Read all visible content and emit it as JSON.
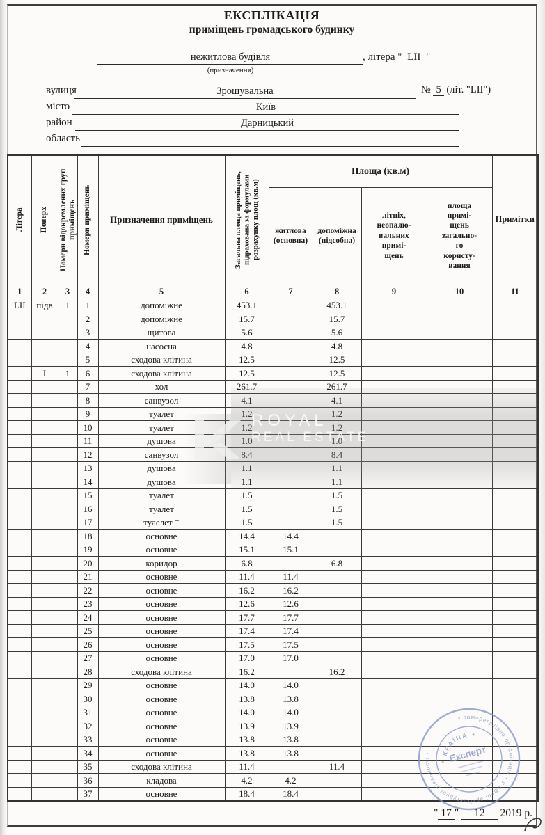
{
  "document": {
    "title": "ЕКСПЛІКАЦІЯ",
    "subtitle": "приміщень громадського будинку",
    "purpose_value": "нежитлова будівля",
    "purpose_caption": "(призначення)",
    "litera_label": ", літера",
    "open_quote": "\"",
    "litera_value": "LII",
    "close_quote": "\"",
    "fields": {
      "street_label": "вулиця",
      "street_value": "Зрошувальна",
      "number_label": "№",
      "number_value": "5",
      "number_suffix": "(літ. \"LII\")",
      "city_label": "місто",
      "city_value": "Київ",
      "district_label": "район",
      "district_value": "Дарницький",
      "region_label": "область",
      "region_value": ""
    },
    "date": {
      "open": "\"",
      "day": "17",
      "close": "\"",
      "month": "12",
      "year_text": "2019 р."
    }
  },
  "table": {
    "headers": {
      "col1": "Літера",
      "col2": "Поверх",
      "col3": "Номери відокремлених груп приміщень",
      "col4": "Номери приміщень",
      "col5": "Призначення приміщень",
      "col6": "Загальна площа приміщень, підрахована за формулами розрахунку площ (кв.м)",
      "area_group": "Площа (кв.м)",
      "col7": "житлова\n(основна)",
      "col8": "допоміжна\n(підсобна)",
      "col9": "літніх,\nнеопалю-\nвальних\nпримі-\nщень",
      "col10": "площа\nпримі-\nщень\nзагально-\nго\nкористу-\nвання",
      "col11": "Примітки"
    },
    "col_numbers": [
      "1",
      "2",
      "3",
      "4",
      "5",
      "6",
      "7",
      "8",
      "9",
      "10",
      "11"
    ],
    "rows": [
      [
        "LII",
        "підв",
        "1",
        "1",
        "допоміжне",
        "453.1",
        "",
        "453.1",
        "",
        "",
        ""
      ],
      [
        "",
        "",
        "",
        "2",
        "допоміжне",
        "15.7",
        "",
        "15.7",
        "",
        "",
        ""
      ],
      [
        "",
        "",
        "",
        "3",
        "щитова",
        "5.6",
        "",
        "5.6",
        "",
        "",
        ""
      ],
      [
        "",
        "",
        "",
        "4",
        "насосна",
        "4.8",
        "",
        "4.8",
        "",
        "",
        ""
      ],
      [
        "",
        "",
        "",
        "5",
        "сходова клітина",
        "12.5",
        "",
        "12.5",
        "",
        "",
        ""
      ],
      [
        "",
        "I",
        "1",
        "6",
        "сходова клітина",
        "12.5",
        "",
        "12.5",
        "",
        "",
        ""
      ],
      [
        "",
        "",
        "",
        "7",
        "хол",
        "261.7",
        "",
        "261.7",
        "",
        "",
        ""
      ],
      [
        "",
        "",
        "",
        "8",
        "санвузол",
        "4.1",
        "",
        "4.1",
        "",
        "",
        ""
      ],
      [
        "",
        "",
        "",
        "9",
        "туалет",
        "1.2",
        "",
        "1.2",
        "",
        "",
        ""
      ],
      [
        "",
        "",
        "",
        "10",
        "туалет",
        "1.2",
        "",
        "1.2",
        "",
        "",
        ""
      ],
      [
        "",
        "",
        "",
        "11",
        "душова",
        "1.0",
        "",
        "1.0",
        "",
        "",
        ""
      ],
      [
        "",
        "",
        "",
        "12",
        "санвузол",
        "8.4",
        "",
        "8.4",
        "",
        "",
        ""
      ],
      [
        "",
        "",
        "",
        "13",
        "душова",
        "1.1",
        "",
        "1.1",
        "",
        "",
        ""
      ],
      [
        "",
        "",
        "",
        "14",
        "душова",
        "1.1",
        "",
        "1.1",
        "",
        "",
        ""
      ],
      [
        "",
        "",
        "",
        "15",
        "туалет",
        "1.5",
        "",
        "1.5",
        "",
        "",
        ""
      ],
      [
        "",
        "",
        "",
        "16",
        "туалет",
        "1.5",
        "",
        "1.5",
        "",
        "",
        ""
      ],
      [
        "",
        "",
        "",
        "17",
        "туаелет ⁻",
        "1.5",
        "",
        "1.5",
        "",
        "",
        ""
      ],
      [
        "",
        "",
        "",
        "18",
        "основне",
        "14.4",
        "14.4",
        "",
        "",
        "",
        ""
      ],
      [
        "",
        "",
        "",
        "19",
        "основне",
        "15.1",
        "15.1",
        "",
        "",
        "",
        ""
      ],
      [
        "",
        "",
        "",
        "20",
        "коридор",
        "6.8",
        "",
        "6.8",
        "",
        "",
        ""
      ],
      [
        "",
        "",
        "",
        "21",
        "основне",
        "11.4",
        "11.4",
        "",
        "",
        "",
        ""
      ],
      [
        "",
        "",
        "",
        "22",
        "основне",
        "16.2",
        "16.2",
        "",
        "",
        "",
        ""
      ],
      [
        "",
        "",
        "",
        "23",
        "основне",
        "12.6",
        "12.6",
        "",
        "",
        "",
        ""
      ],
      [
        "",
        "",
        "",
        "24",
        "основне",
        "17.7",
        "17.7",
        "",
        "",
        "",
        ""
      ],
      [
        "",
        "",
        "",
        "25",
        "основне",
        "17.4",
        "17.4",
        "",
        "",
        "",
        ""
      ],
      [
        "",
        "",
        "",
        "26",
        "основне",
        "17.5",
        "17.5",
        "",
        "",
        "",
        ""
      ],
      [
        "",
        "",
        "",
        "27",
        "основне",
        "17.0",
        "17.0",
        "",
        "",
        "",
        ""
      ],
      [
        "",
        "",
        "",
        "28",
        "сходова клітина",
        "16.2",
        "",
        "16.2",
        "",
        "",
        ""
      ],
      [
        "",
        "",
        "",
        "29",
        "основне",
        "14.0",
        "14.0",
        "",
        "",
        "",
        ""
      ],
      [
        "",
        "",
        "",
        "30",
        "основне",
        "13.8",
        "13.8",
        "",
        "",
        "",
        ""
      ],
      [
        "",
        "",
        "",
        "31",
        "основне",
        "14.0",
        "14.0",
        "",
        "",
        "",
        ""
      ],
      [
        "",
        "",
        "",
        "32",
        "основне",
        "13.9",
        "13.9",
        "",
        "",
        "",
        ""
      ],
      [
        "",
        "",
        "",
        "33",
        "основне",
        "13.8",
        "13.8",
        "",
        "",
        "",
        ""
      ],
      [
        "",
        "",
        "",
        "34",
        "основне",
        "13.8",
        "13.8",
        "",
        "",
        "",
        ""
      ],
      [
        "",
        "",
        "",
        "35",
        "сходова клітина",
        "11.4",
        "",
        "11.4",
        "",
        "",
        ""
      ],
      [
        "",
        "",
        "",
        "36",
        "кладова",
        "4.2",
        "4.2",
        "",
        "",
        "",
        ""
      ],
      [
        "",
        "",
        "",
        "37",
        "основне",
        "18.4",
        "18.4",
        "",
        "",
        "",
        ""
      ]
    ]
  },
  "watermark": {
    "line1": "ROYAL",
    "line2": "REAL ESTATE"
  },
  "stamp": {
    "ring_text": "• саморегулівна організація • у сфері архітектурної діяльності •",
    "inner_top": "* КРАЇНА *",
    "center": "Експерт",
    "accent_color": "#8597c6"
  }
}
